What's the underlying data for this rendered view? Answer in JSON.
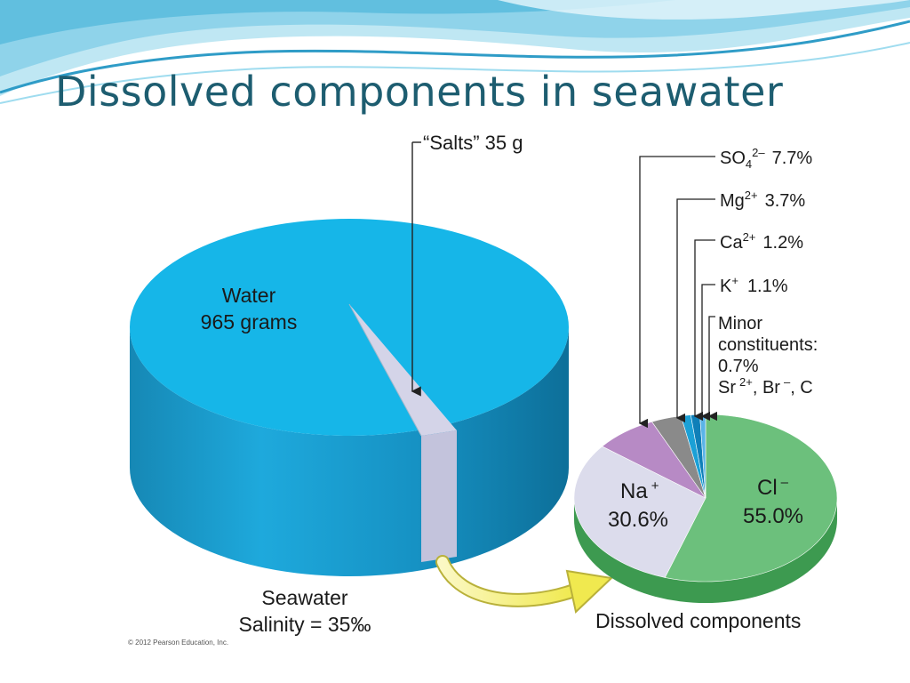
{
  "slide": {
    "title": "Dissolved components in seawater",
    "copyright": "© 2012 Pearson Education, Inc."
  },
  "colors": {
    "title": "#1d5d70",
    "water": "#16b6e8",
    "salts_wedge": "#d4d4e8",
    "cl": "#6cc07c",
    "na": "#dcdcec",
    "so4": "#b78ac5",
    "mg": "#8a8a8a",
    "ca": "#1ba0d6",
    "k": "#0f7fb8",
    "minor": "#5ab4e8",
    "arrow": "#f2ec6a"
  },
  "chart_data": [
    {
      "type": "pie",
      "slices": [
        {
          "label": "Water",
          "value_g": 965
        },
        {
          "label": "“Salts”",
          "value_g": 35
        }
      ],
      "labels": {
        "water_line1": "Water",
        "water_line2": "965 grams",
        "salts": "“Salts” 35 g",
        "caption_line1": "Seawater",
        "caption_line2": "Salinity = 35‰"
      }
    },
    {
      "type": "pie",
      "title": "Dissolved components",
      "slices": [
        {
          "label": "Cl⁻",
          "value": 55.0
        },
        {
          "label": "Na⁺",
          "value": 30.6
        },
        {
          "label": "SO₄²⁻",
          "value": 7.7
        },
        {
          "label": "Mg²⁺",
          "value": 3.7
        },
        {
          "label": "Ca²⁺",
          "value": 1.2
        },
        {
          "label": "K⁺",
          "value": 1.1
        },
        {
          "label": "Minor constituents",
          "value": 0.7
        }
      ],
      "labels": {
        "cl_ion": "Cl",
        "cl_charge": "–",
        "cl_pct": "55.0%",
        "na_ion": "Na",
        "na_charge": "+",
        "na_pct": "30.6%",
        "so4_ion": "SO",
        "so4_sub": "4",
        "so4_charge": "2–",
        "so4_pct": "7.7%",
        "mg_ion": "Mg",
        "mg_charge": "2+",
        "mg_pct": "3.7%",
        "ca_ion": "Ca",
        "ca_charge": "2+",
        "ca_pct": "1.2%",
        "k_ion": "K",
        "k_charge": "+",
        "k_pct": "1.1%",
        "minor_line1": "Minor",
        "minor_line2": "constituents:",
        "minor_line3": "0.7%",
        "minor_sr": "Sr",
        "minor_sr_charge": "2+",
        "minor_br": ", Br",
        "minor_br_charge": "–",
        "minor_c": ", C"
      }
    }
  ]
}
